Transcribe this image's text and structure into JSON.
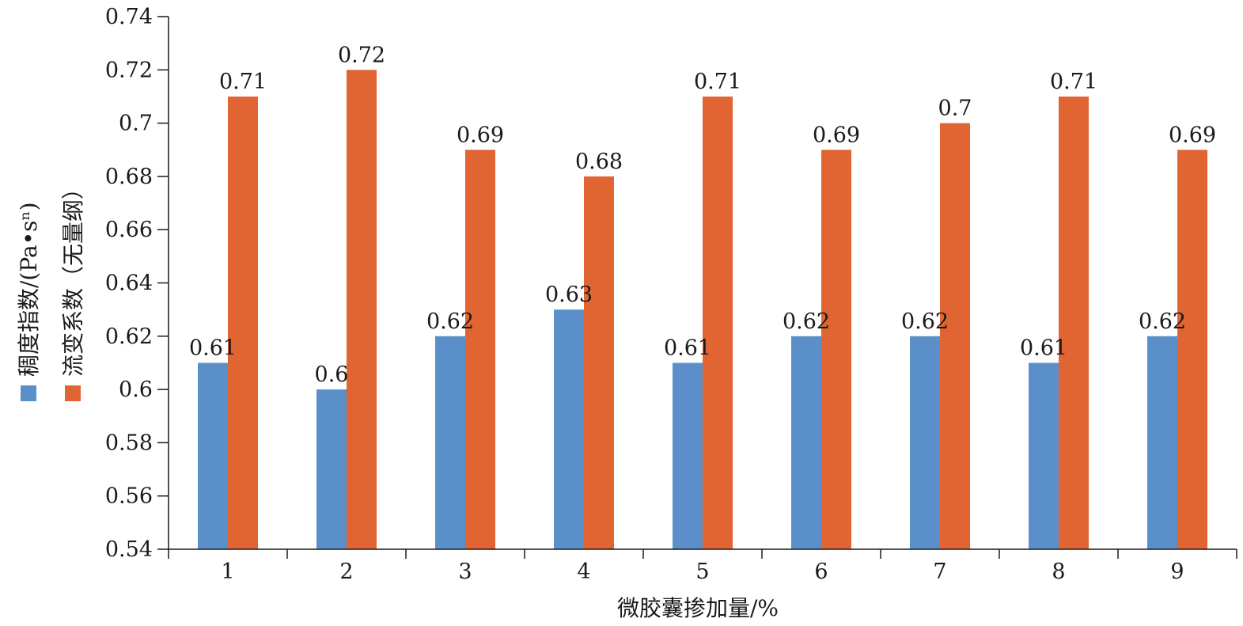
{
  "chart_data": {
    "type": "bar",
    "title": "",
    "categories": [
      "1",
      "2",
      "3",
      "4",
      "5",
      "6",
      "7",
      "8",
      "9"
    ],
    "series": [
      {
        "name": "稠度指数/(Pa•sⁿ)",
        "color": "#5b8fca",
        "values": [
          0.61,
          0.6,
          0.62,
          0.63,
          0.61,
          0.62,
          0.62,
          0.61,
          0.62
        ],
        "labels": [
          "0.61",
          "0.6",
          "0.62",
          "0.63",
          "0.61",
          "0.62",
          "0.62",
          "0.61",
          "0.62"
        ]
      },
      {
        "name": "流变系数（无量纲）",
        "color": "#e06532",
        "values": [
          0.71,
          0.72,
          0.69,
          0.68,
          0.71,
          0.69,
          0.7,
          0.71,
          0.69
        ],
        "labels": [
          "0.71",
          "0.72",
          "0.69",
          "0.68",
          "0.71",
          "0.69",
          "0.7",
          "0.71",
          "0.69"
        ]
      }
    ],
    "xlabel": "微胶囊掺加量/%",
    "ylabel": "",
    "ylim": [
      0.54,
      0.74
    ],
    "yticks": [
      "0.54",
      "0.56",
      "0.58",
      "0.6",
      "0.62",
      "0.64",
      "0.66",
      "0.68",
      "0.7",
      "0.72",
      "0.74"
    ],
    "grid": false,
    "legend_position": "left, vertical"
  }
}
